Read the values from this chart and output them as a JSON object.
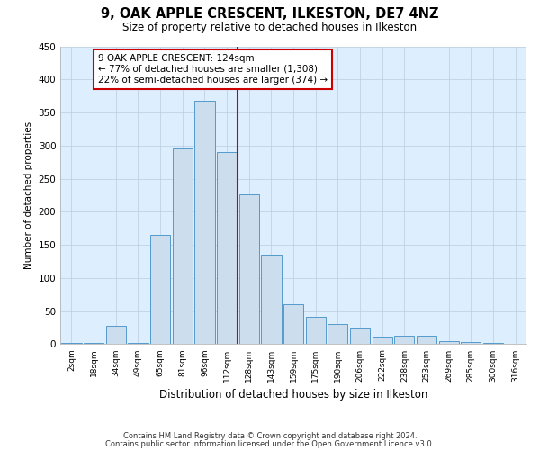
{
  "title": "9, OAK APPLE CRESCENT, ILKESTON, DE7 4NZ",
  "subtitle": "Size of property relative to detached houses in Ilkeston",
  "xlabel": "Distribution of detached houses by size in Ilkeston",
  "ylabel": "Number of detached properties",
  "categories": [
    "2sqm",
    "18sqm",
    "34sqm",
    "49sqm",
    "65sqm",
    "81sqm",
    "96sqm",
    "112sqm",
    "128sqm",
    "143sqm",
    "159sqm",
    "175sqm",
    "190sqm",
    "206sqm",
    "222sqm",
    "238sqm",
    "253sqm",
    "269sqm",
    "285sqm",
    "300sqm",
    "316sqm"
  ],
  "values": [
    2,
    2,
    28,
    2,
    165,
    295,
    368,
    290,
    226,
    135,
    60,
    42,
    30,
    25,
    12,
    13,
    13,
    5,
    3,
    2,
    1
  ],
  "bar_color": "#ccdded",
  "bar_edge_color": "#5599cc",
  "vline_x_index": 8,
  "annotation_text_line1": "9 OAK APPLE CRESCENT: 124sqm",
  "annotation_text_line2": "← 77% of detached houses are smaller (1,308)",
  "annotation_text_line3": "22% of semi-detached houses are larger (374) →",
  "annotation_box_color": "#ffffff",
  "annotation_box_edge_color": "#cc0000",
  "vline_color": "#cc0000",
  "background_color": "#ffffff",
  "plot_bg_color": "#ddeeff",
  "grid_color": "#bbccdd",
  "ylim": [
    0,
    450
  ],
  "yticks": [
    0,
    50,
    100,
    150,
    200,
    250,
    300,
    350,
    400,
    450
  ],
  "footer1": "Contains HM Land Registry data © Crown copyright and database right 2024.",
  "footer2": "Contains public sector information licensed under the Open Government Licence v3.0."
}
